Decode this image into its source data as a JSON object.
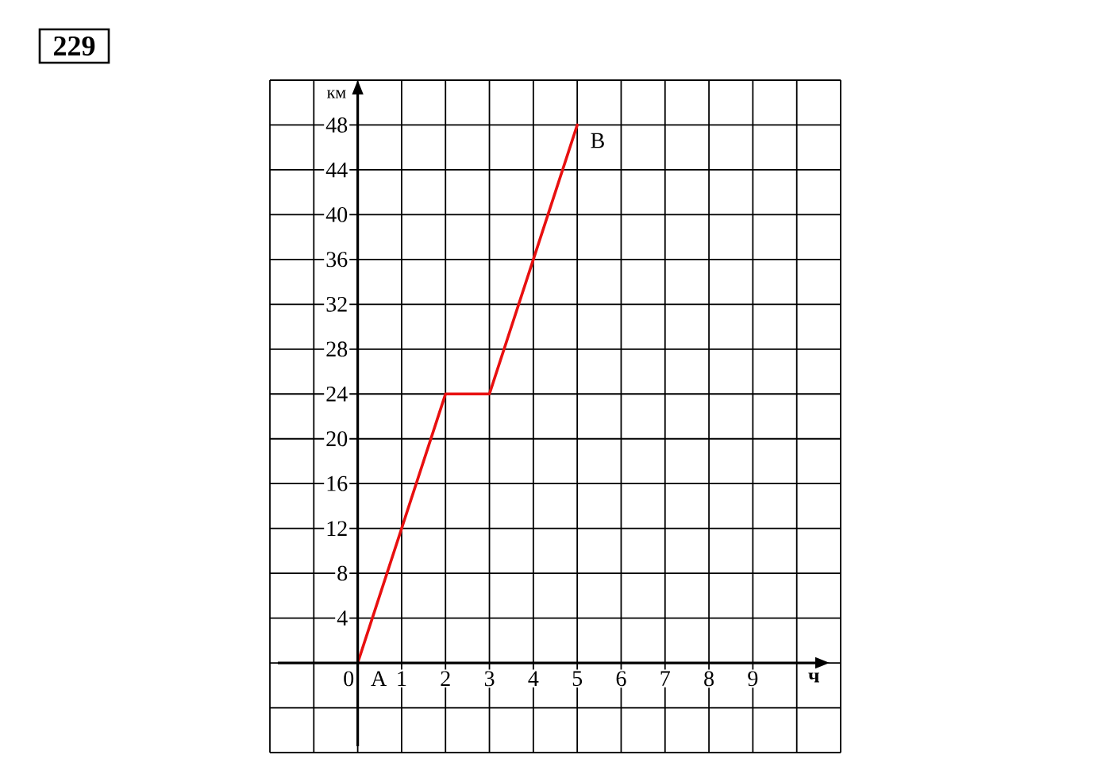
{
  "chart_data": {
    "type": "line",
    "title": "229",
    "xlabel": "ч",
    "ylabel": "км",
    "x": [
      0,
      2,
      3,
      5
    ],
    "values": [
      0,
      24,
      24,
      48
    ],
    "color": "#e81010",
    "line_style": "solid",
    "xlim": [
      -2,
      11
    ],
    "ylim": [
      -8,
      52
    ],
    "xticks": [
      {
        "value": -2,
        "label": null
      },
      {
        "value": -1,
        "label": null
      },
      0,
      1,
      2,
      3,
      4,
      5,
      6,
      7,
      8,
      9,
      {
        "value": 10,
        "label": null
      },
      {
        "value": 11,
        "label": null
      }
    ],
    "yticks": [
      {
        "value": -8,
        "label": null
      },
      {
        "value": -4,
        "label": null
      },
      {
        "value": 0,
        "label": null
      },
      4,
      8,
      12,
      16,
      20,
      24,
      28,
      32,
      36,
      40,
      44,
      48,
      {
        "value": 52,
        "label": null
      }
    ],
    "grid": true,
    "annotations": [
      {
        "text": "A",
        "x": 0,
        "y": 0
      },
      {
        "text": "B",
        "x": 5,
        "y": 48
      }
    ]
  }
}
